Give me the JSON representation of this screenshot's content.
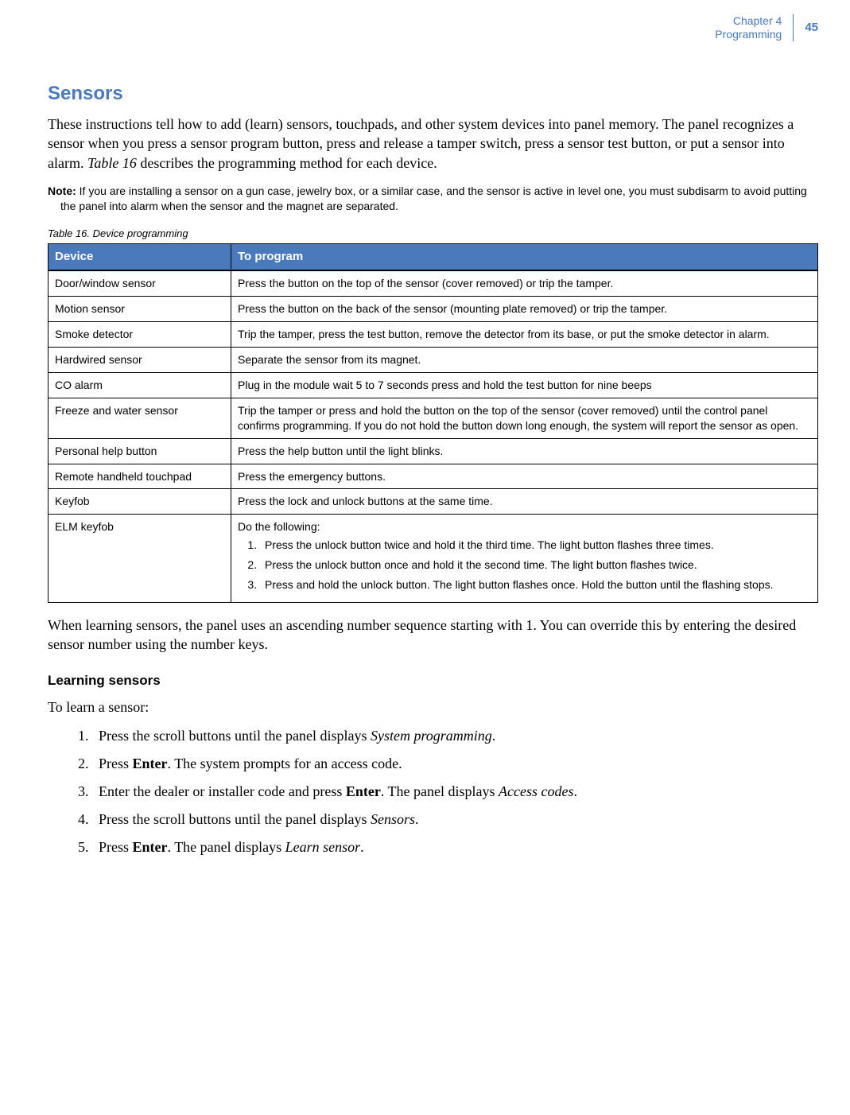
{
  "header": {
    "chapter_line1": "Chapter 4",
    "chapter_line2": "Programming",
    "page_number": "45"
  },
  "section": {
    "title": "Sensors",
    "intro_part1": "These instructions tell how to add (learn) sensors, touchpads, and other system devices into panel memory. The panel recognizes a sensor when you press a sensor program button, press and release a tamper switch, press a sensor test button, or put a sensor into alarm. ",
    "intro_italic": "Table 16",
    "intro_part2": " describes the programming method for each device."
  },
  "note": {
    "label": "Note:",
    "body": "  If you are installing a sensor on a gun case, jewelry box, or a similar case, and the sensor is active in level one, you must subdisarm to avoid putting the panel into alarm when the sensor and the magnet are separated."
  },
  "table": {
    "caption": "Table 16.   Device programming",
    "col1_header": "Device",
    "col2_header": "To program",
    "rows": [
      {
        "device": "Door/window sensor",
        "program": "Press the button on the top of the sensor (cover removed) or trip the tamper."
      },
      {
        "device": "Motion sensor",
        "program": "Press the button on the back of the sensor (mounting plate removed) or trip the tamper."
      },
      {
        "device": "Smoke detector",
        "program": "Trip the tamper, press the test button, remove the detector from its base, or put the smoke detector in alarm."
      },
      {
        "device": "Hardwired sensor",
        "program": "Separate the sensor from its magnet."
      },
      {
        "device": "CO alarm",
        "program": "Plug in the module wait 5 to 7 seconds press and hold the test button for nine beeps"
      },
      {
        "device": "Freeze and water sensor",
        "program": "Trip the tamper or press and hold the button on the top of the sensor (cover removed) until the control panel confirms programming. If you do not hold the button down long enough, the system will report the sensor as open."
      },
      {
        "device": "Personal help button",
        "program": "Press the help button until the light blinks."
      },
      {
        "device": "Remote handheld touchpad",
        "program": "Press the emergency buttons."
      },
      {
        "device": "Keyfob",
        "program": "Press the lock and unlock buttons at the same time."
      }
    ],
    "elm_row": {
      "device": "ELM keyfob",
      "intro": "Do the following:",
      "steps": [
        "Press the unlock button twice and hold it the third time.  The light button flashes three times.",
        "Press the unlock button once and hold it the second time.  The light button flashes twice.",
        "Press and hold the unlock button.  The light button flashes once. Hold the button until the flashing stops."
      ]
    }
  },
  "after_table": "When learning sensors, the panel uses an ascending number sequence starting with 1. You can override this by entering the desired sensor number using the number keys.",
  "subheading": "Learning sensors",
  "lead_in": "To learn a sensor:",
  "steps": [
    {
      "pre": "Press the scroll buttons until the panel displays ",
      "italic": "System programming",
      "post": "."
    },
    {
      "pre": "Press ",
      "bold": "Enter",
      "post": ".  The system prompts for an access code."
    },
    {
      "pre": "Enter the dealer or installer code and press ",
      "bold": "Enter",
      "post": ".  The panel displays ",
      "italic": "Access codes",
      "post2": "."
    },
    {
      "pre": "Press the scroll buttons until the panel displays ",
      "italic": "Sensors",
      "post": "."
    },
    {
      "pre": "Press ",
      "bold": "Enter",
      "post": ". The panel displays ",
      "italic": "Learn sensor",
      "post2": "."
    }
  ],
  "colors": {
    "accent": "#4a7abc",
    "table_header_bg": "#4a7abc",
    "table_header_fg": "#ffffff",
    "table_border": "#000000",
    "background": "#ffffff",
    "text": "#000000"
  }
}
